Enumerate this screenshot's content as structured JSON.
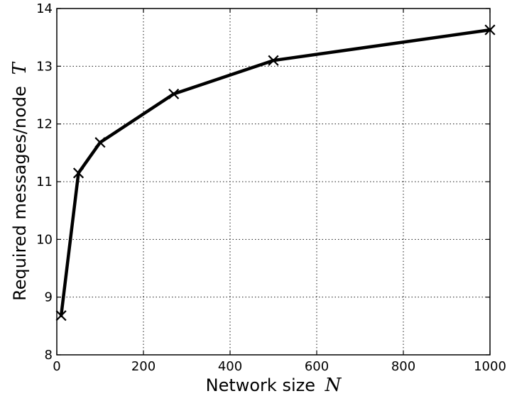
{
  "chart_data": {
    "type": "line",
    "title": "",
    "xlabel": "Network size",
    "xlabel_var": "N",
    "ylabel": "Required messages/node",
    "ylabel_var": "T",
    "xlim": [
      0,
      1000
    ],
    "ylim": [
      8,
      14
    ],
    "xticks": [
      0,
      200,
      400,
      600,
      800,
      1000
    ],
    "yticks": [
      8,
      9,
      10,
      11,
      12,
      13,
      14
    ],
    "xtick_labels": [
      "0",
      "200",
      "400",
      "600",
      "800",
      "1000"
    ],
    "ytick_labels": [
      "8",
      "9",
      "10",
      "11",
      "12",
      "13",
      "14"
    ],
    "grid": true,
    "series": [
      {
        "color": "#000000",
        "marker": "x",
        "x": [
          10,
          50,
          100,
          270,
          500,
          1000
        ],
        "y": [
          8.68,
          11.15,
          11.68,
          12.52,
          13.1,
          13.63
        ]
      }
    ]
  }
}
